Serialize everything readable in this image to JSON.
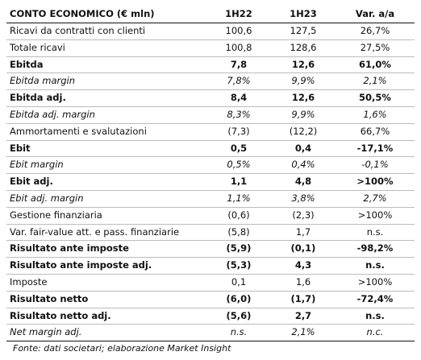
{
  "table": {
    "headers": [
      "CONTO ECONOMICO (€ mln)",
      "1H22",
      "1H23",
      "Var. a/a"
    ],
    "rows": [
      {
        "label": "Ricavi da contratti con clienti",
        "v1": "100,6",
        "v2": "127,5",
        "v3": "26,7%",
        "style": "normal"
      },
      {
        "label": "Totale ricavi",
        "v1": "100,8",
        "v2": "128,6",
        "v3": "27,5%",
        "style": "normal"
      },
      {
        "label": "Ebitda",
        "v1": "7,8",
        "v2": "12,6",
        "v3": "61,0%",
        "style": "bold"
      },
      {
        "label": "Ebitda margin",
        "v1": "7,8%",
        "v2": "9,9%",
        "v3": "2,1%",
        "style": "italic"
      },
      {
        "label": "Ebitda adj.",
        "v1": "8,4",
        "v2": "12,6",
        "v3": "50,5%",
        "style": "bold"
      },
      {
        "label": "Ebitda adj. margin",
        "v1": "8,3%",
        "v2": "9,9%",
        "v3": "1,6%",
        "style": "italic"
      },
      {
        "label": "Ammortamenti e svalutazioni",
        "v1": "(7,3)",
        "v2": "(12,2)",
        "v3": "66,7%",
        "style": "normal"
      },
      {
        "label": "Ebit",
        "v1": "0,5",
        "v2": "0,4",
        "v3": "-17,1%",
        "style": "bold"
      },
      {
        "label": "Ebit margin",
        "v1": "0,5%",
        "v2": "0,4%",
        "v3": "-0,1%",
        "style": "italic"
      },
      {
        "label": "Ebit adj.",
        "v1": "1,1",
        "v2": "4,8",
        "v3": ">100%",
        "style": "bold"
      },
      {
        "label": "Ebit adj. margin",
        "v1": "1,1%",
        "v2": "3,8%",
        "v3": "2,7%",
        "style": "italic"
      },
      {
        "label": "Gestione finanziaria",
        "v1": "(0,6)",
        "v2": "(2,3)",
        "v3": ">100%",
        "style": "normal"
      },
      {
        "label": "Var. fair-value att. e pass. finanziarie",
        "v1": "(5,8)",
        "v2": "1,7",
        "v3": "n.s.",
        "style": "normal"
      },
      {
        "label": "Risultato ante imposte",
        "v1": "(5,9)",
        "v2": "(0,1)",
        "v3": "-98,2%",
        "style": "bold"
      },
      {
        "label": "Risultato ante imposte adj.",
        "v1": "(5,3)",
        "v2": "4,3",
        "v3": "n.s.",
        "style": "bold"
      },
      {
        "label": "Imposte",
        "v1": "0,1",
        "v2": "1,6",
        "v3": ">100%",
        "style": "normal"
      },
      {
        "label": "Risultato netto",
        "v1": "(6,0)",
        "v2": "(1,7)",
        "v3": "-72,4%",
        "style": "bold"
      },
      {
        "label": "Risultato netto adj.",
        "v1": "(5,6)",
        "v2": "2,7",
        "v3": "n.s.",
        "style": "bold"
      },
      {
        "label": "Net margin adj.",
        "v1": "n.s.",
        "v2": "2,1%",
        "v3": "n.c.",
        "style": "italic"
      }
    ]
  },
  "source": "Fonte: dati societari; elaborazione Market Insight"
}
